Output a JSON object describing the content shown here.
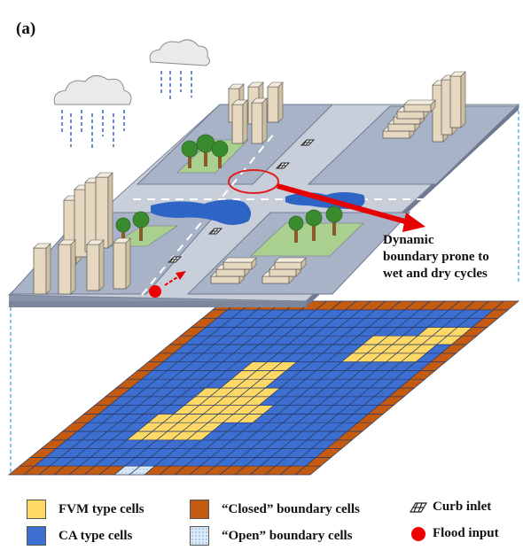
{
  "panel_label": "(a)",
  "annotation": "Dynamic\nboundary prone to\nwet and dry cycles",
  "legend": {
    "fvm": "FVM type cells",
    "ca": "CA type cells",
    "closed": "“Closed” boundary cells",
    "open": "“Open” boundary cells",
    "curb": "Curb inlet",
    "flood": "Flood input"
  },
  "colors": {
    "fvm": "#ffd966",
    "ca": "#3d6fd0",
    "closed": "#c55a11",
    "open": "#dbe9f7",
    "flood_input": "#ee0000",
    "water": "#2e64c4",
    "platform": "#a9b3c7",
    "grass": "#92d050"
  },
  "icons": [
    "rain-cloud-icon",
    "building-icon",
    "tree-icon",
    "curb-inlet-icon",
    "flood-input-icon",
    "flow-arrow-icon"
  ]
}
